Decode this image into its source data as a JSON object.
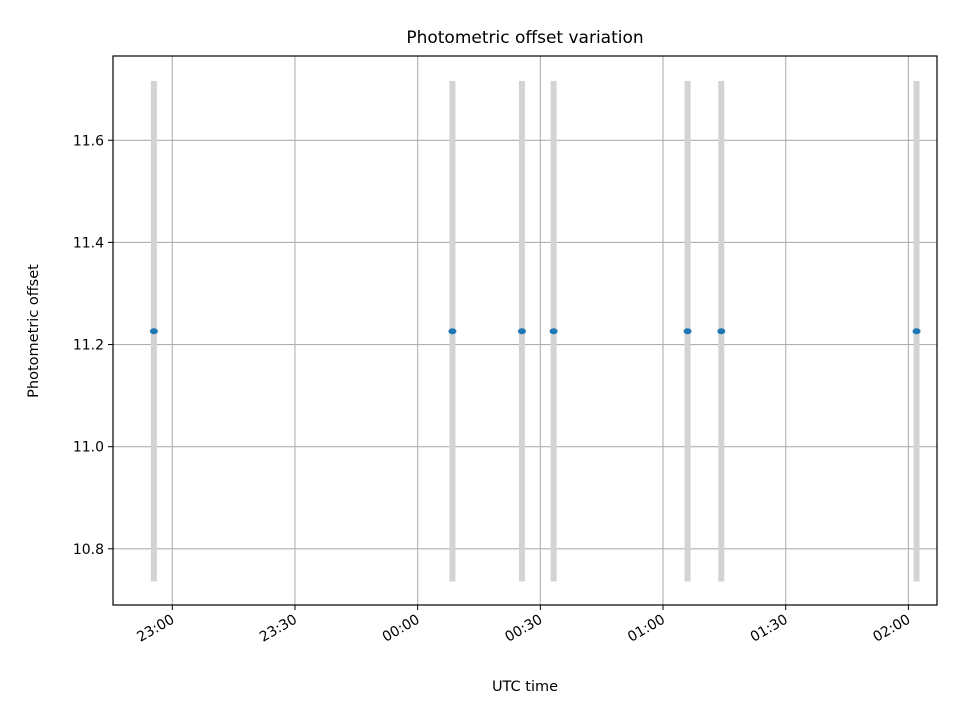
{
  "chart_data": {
    "type": "scatter",
    "title": "Photometric offset variation",
    "xlabel": "UTC time",
    "ylabel": "Photometric offset",
    "x_axis_type": "time",
    "xlim": [
      "22:45:30",
      "02:07:00"
    ],
    "ylim": [
      10.69,
      11.765
    ],
    "x_ticks": [
      "23:00",
      "23:30",
      "00:00",
      "00:30",
      "01:00",
      "01:30",
      "02:00"
    ],
    "y_ticks": [
      "10.8",
      "11.0",
      "11.2",
      "11.4",
      "11.6"
    ],
    "grid": true,
    "series": [
      {
        "color": "#1f77b4",
        "errorbar_color": "#d3d3d3",
        "points": [
          {
            "t": "22:55:30",
            "y": 11.226,
            "yerr": 0.49
          },
          {
            "t": "00:08:30",
            "y": 11.226,
            "yerr": 0.49
          },
          {
            "t": "00:25:30",
            "y": 11.226,
            "yerr": 0.49
          },
          {
            "t": "00:33:15",
            "y": 11.226,
            "yerr": 0.49
          },
          {
            "t": "01:06:00",
            "y": 11.226,
            "yerr": 0.49
          },
          {
            "t": "01:14:15",
            "y": 11.226,
            "yerr": 0.49
          },
          {
            "t": "02:02:00",
            "y": 11.226,
            "yerr": 0.49
          }
        ]
      }
    ]
  }
}
